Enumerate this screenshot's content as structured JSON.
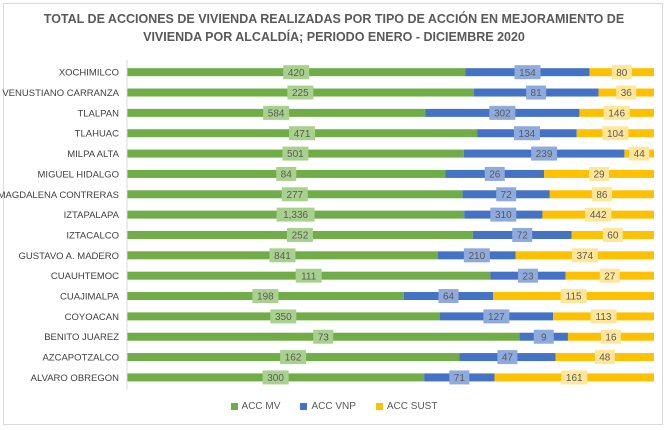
{
  "chart_data": {
    "type": "bar",
    "orientation": "horizontal",
    "stacked": "percent",
    "title_lines": [
      "TOTAL DE ACCIONES DE VIVIENDA REALIZADAS POR TIPO DE ACCIÓN EN MEJORAMIENTO DE",
      "VIVIENDA POR ALCALDÍA; PERIODO ENERO - DICIEMBRE 2020"
    ],
    "categories": [
      "XOCHIMILCO",
      "VENUSTIANO CARRANZA",
      "TLALPAN",
      "TLAHUAC",
      "MILPA ALTA",
      "MIGUEL HIDALGO",
      "MAGDALENA CONTRERAS",
      "IZTAPALAPA",
      "IZTACALCO",
      "GUSTAVO A. MADERO",
      "CUAUHTEMOC",
      "CUAJIMALPA",
      "COYOACAN",
      "BENITO JUAREZ",
      "AZCAPOTZALCO",
      "ALVARO OBREGON"
    ],
    "series": [
      {
        "name": "ACC MV",
        "color": "#70ad47",
        "values": [
          420,
          225,
          584,
          471,
          501,
          84,
          277,
          1336,
          252,
          841,
          111,
          198,
          350,
          73,
          162,
          300
        ],
        "labels": [
          "420",
          "225",
          "584",
          "471",
          "501",
          "84",
          "277",
          "1,336",
          "252",
          "841",
          "111",
          "198",
          "350",
          "73",
          "162",
          "300"
        ]
      },
      {
        "name": "ACC VNP",
        "color": "#4472c4",
        "values": [
          154,
          81,
          302,
          134,
          239,
          26,
          72,
          310,
          72,
          210,
          23,
          64,
          127,
          9,
          47,
          71
        ],
        "labels": [
          "154",
          "81",
          "302",
          "134",
          "239",
          "26",
          "72",
          "310",
          "72",
          "210",
          "23",
          "64",
          "127",
          "9",
          "47",
          "71"
        ]
      },
      {
        "name": "ACC SUST",
        "color": "#ffc000",
        "values": [
          80,
          36,
          146,
          104,
          44,
          29,
          86,
          442,
          60,
          374,
          27,
          115,
          113,
          16,
          48,
          161
        ],
        "labels": [
          "80",
          "36",
          "146",
          "104",
          "44",
          "29",
          "86",
          "442",
          "60",
          "374",
          "27",
          "115",
          "113",
          "16",
          "48",
          "161"
        ]
      }
    ],
    "legend_position": "bottom",
    "grid": false
  }
}
